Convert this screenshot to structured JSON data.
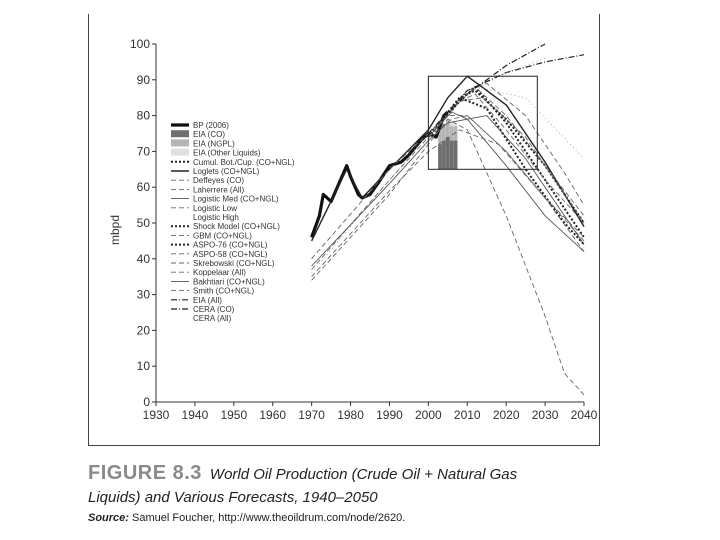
{
  "chart_data": {
    "type": "line",
    "title": "World Oil Production (Crude Oil + Natural Gas Liquids) and Various Forecasts, 1940–2050",
    "xlabel": "",
    "ylabel": "mbpd",
    "xlim": [
      1930,
      2040
    ],
    "ylim": [
      0,
      100
    ],
    "xticks": [
      1930,
      1940,
      1950,
      1960,
      1970,
      1980,
      1990,
      2000,
      2010,
      2020,
      2030,
      2040
    ],
    "yticks": [
      0,
      10,
      20,
      30,
      40,
      50,
      60,
      70,
      80,
      90,
      100
    ],
    "zoom_box": {
      "x": [
        2000,
        2028
      ],
      "y": [
        65,
        91
      ]
    },
    "legend_position": "left",
    "series": [
      {
        "name": "BP (2006)",
        "style": "hist",
        "x": [
          1970,
          1972,
          1973,
          1975,
          1977,
          1979,
          1980,
          1982,
          1983,
          1985,
          1987,
          1990,
          1993,
          1995,
          1998,
          2000,
          2002,
          2004,
          2005
        ],
        "values": [
          46,
          52,
          58,
          56,
          61,
          66,
          63,
          58,
          57,
          58,
          61,
          66,
          67,
          69,
          73,
          75,
          74,
          80,
          81
        ]
      },
      {
        "name": "EIA (CO)",
        "style": "bar",
        "x": [
          2003,
          2004,
          2005,
          2006,
          2007
        ],
        "values": [
          72,
          73,
          74,
          73,
          73
        ]
      },
      {
        "name": "EIA (NGPL)",
        "style": "bar",
        "x": [
          2003,
          2004,
          2005,
          2006,
          2007
        ],
        "values": [
          76,
          77,
          78,
          77,
          77
        ]
      },
      {
        "name": "EIA (Other Liquids)",
        "style": "bar",
        "x": [
          2003,
          2004,
          2005,
          2006,
          2007
        ],
        "values": [
          77,
          78,
          79,
          78,
          78
        ]
      },
      {
        "name": "Cumul. Bot./Cup. (CO+NGL)",
        "style": "dot",
        "x": [
          2000,
          2008,
          2012,
          2020,
          2030,
          2040
        ],
        "values": [
          74,
          85,
          87,
          79,
          66,
          50
        ]
      },
      {
        "name": "Loglets (CO+NGL)",
        "style": "solid",
        "x": [
          1970,
          1979,
          1983,
          1990,
          2000,
          2005,
          2010,
          2020,
          2030,
          2040
        ],
        "values": [
          45,
          65,
          57,
          65,
          76,
          85,
          91,
          83,
          67,
          49
        ]
      },
      {
        "name": "Deffeyes (CO)",
        "style": "dash",
        "x": [
          1970,
          1990,
          2000,
          2005,
          2010,
          2020,
          2030,
          2040
        ],
        "values": [
          40,
          65,
          75,
          80,
          80,
          70,
          57,
          45
        ]
      },
      {
        "name": "Laherrere (All)",
        "style": "dash",
        "x": [
          1970,
          1990,
          2000,
          2010,
          2015,
          2025,
          2035,
          2040
        ],
        "values": [
          37,
          62,
          74,
          87,
          89,
          80,
          64,
          55
        ]
      },
      {
        "name": "Logistic Med (CO+NGL)",
        "style": "thin",
        "x": [
          1970,
          1990,
          2000,
          2005,
          2015,
          2025,
          2035,
          2040
        ],
        "values": [
          38,
          61,
          73,
          78,
          80,
          68,
          52,
          44
        ]
      },
      {
        "name": "Logistic Low",
        "style": "dash",
        "x": [
          1970,
          1990,
          2000,
          2008,
          2018,
          2030,
          2040
        ],
        "values": [
          35,
          59,
          70,
          76,
          72,
          57,
          42
        ]
      },
      {
        "name": "Logistic High",
        "style": "none",
        "x": [
          1970,
          1990,
          2000,
          2012,
          2025,
          2040
        ],
        "values": [
          36,
          62,
          75,
          88,
          85,
          68
        ]
      },
      {
        "name": "Shock Model (CO+NGL)",
        "style": "dot",
        "x": [
          2000,
          2008,
          2012,
          2020,
          2030,
          2040
        ],
        "values": [
          74,
          84,
          88,
          78,
          62,
          46
        ]
      },
      {
        "name": "GBM (CO+NGL)",
        "style": "dash",
        "x": [
          1970,
          1990,
          2000,
          2005,
          2010,
          2020,
          2030,
          2035,
          2040
        ],
        "values": [
          34,
          58,
          72,
          79,
          76,
          52,
          24,
          8,
          2
        ]
      },
      {
        "name": "ASPO-76 (CO+NGL)",
        "style": "dot",
        "x": [
          2000,
          2008,
          2015,
          2025,
          2035,
          2040
        ],
        "values": [
          74,
          85,
          82,
          65,
          50,
          44
        ]
      },
      {
        "name": "ASPO-58 (CO+NGL)",
        "style": "dash",
        "x": [
          2000,
          2006,
          2010,
          2020,
          2030,
          2040
        ],
        "values": [
          74,
          79,
          80,
          70,
          57,
          46
        ]
      },
      {
        "name": "Skrebowski (CO+NGL)",
        "style": "dash",
        "x": [
          2000,
          2008,
          2012,
          2020,
          2030,
          2040
        ],
        "values": [
          74,
          84,
          88,
          80,
          66,
          52
        ]
      },
      {
        "name": "Koppelaar (All)",
        "style": "dash",
        "x": [
          2000,
          2008,
          2012,
          2020,
          2030,
          2040
        ],
        "values": [
          74,
          84,
          86,
          76,
          62,
          50
        ]
      },
      {
        "name": "Bakhtiari (CO+NGL)",
        "style": "thin",
        "x": [
          2000,
          2006,
          2010,
          2020,
          2030,
          2040
        ],
        "values": [
          74,
          81,
          79,
          66,
          52,
          42
        ]
      },
      {
        "name": "Smith (CO+NGL)",
        "style": "dash",
        "x": [
          2000,
          2008,
          2014,
          2025,
          2035,
          2040
        ],
        "values": [
          74,
          84,
          85,
          74,
          58,
          50
        ]
      },
      {
        "name": "EIA (All)",
        "style": "dashdot",
        "x": [
          2000,
          2010,
          2020,
          2030
        ],
        "values": [
          75,
          86,
          94,
          100
        ]
      },
      {
        "name": "CERA (CO)",
        "style": "dashdot",
        "x": [
          2000,
          2010,
          2020,
          2030,
          2035,
          2040
        ],
        "values": [
          75,
          87,
          92,
          95,
          96,
          97
        ]
      },
      {
        "name": "CERA (All)",
        "style": "none",
        "x": [
          2000,
          2010,
          2020,
          2030
        ],
        "values": [
          75,
          86,
          92,
          96
        ]
      }
    ]
  },
  "caption": {
    "figure_number": "FIGURE 8.3",
    "title_line1": "World Oil Production (Crude Oil + Natural Gas",
    "title_line2": "Liquids) and Various Forecasts, 1940–2050",
    "source_label": "Source:",
    "source_text": "Samuel Foucher, http://www.theoildrum.com/node/2620."
  }
}
